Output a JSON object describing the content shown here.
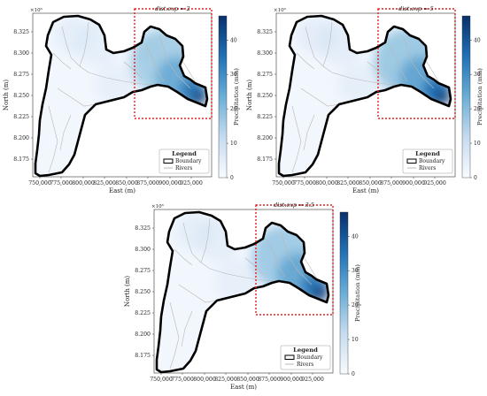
{
  "panels": [
    {
      "title": "dist.exp = 2",
      "intensity": 1.0
    },
    {
      "title": "dist.exp = 5",
      "intensity": 1.15
    },
    {
      "title": "dist.exp = 3.5",
      "intensity": 1.07
    }
  ],
  "axes": {
    "xlabel": "East (m)",
    "ylabel": "North (m)",
    "y_multiplier": "×10⁶",
    "xticks": [
      "750,000",
      "775,000",
      "800,000",
      "825,000",
      "850,000",
      "875,000",
      "900,000",
      "925,000"
    ],
    "yticks": [
      "8.325",
      "8.300",
      "8.275",
      "8.250",
      "8.225",
      "8.200",
      "8.175"
    ]
  },
  "colorbar": {
    "label": "Precipitation (mm)",
    "ticks": [
      "0",
      "10",
      "20",
      "30",
      "40"
    ],
    "range": [
      0,
      47
    ],
    "colormap": [
      "#f7fbff",
      "#c6dbef",
      "#6baed6",
      "#2171b5",
      "#08306b"
    ]
  },
  "legend": {
    "title": "Legend",
    "items": [
      {
        "label": "Boundary",
        "swatch": "box"
      },
      {
        "label": "Rivers",
        "swatch": "line"
      }
    ]
  },
  "colors": {
    "boundary": "#000000",
    "rivers": "#b8b8b8",
    "highlight_box": "#e02020"
  }
}
